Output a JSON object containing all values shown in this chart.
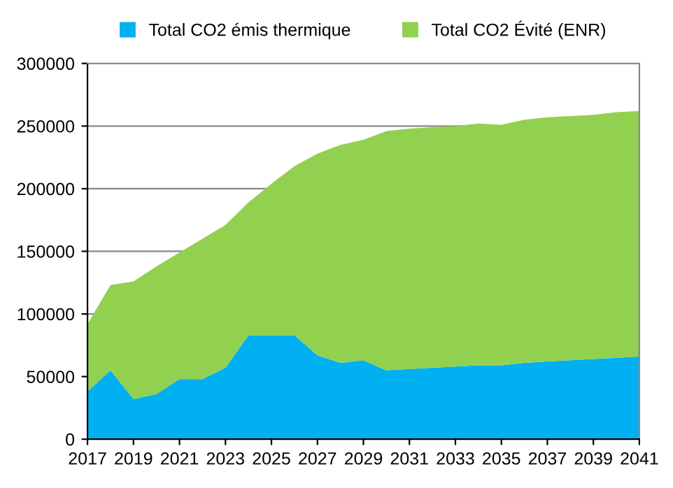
{
  "chart_data": {
    "type": "area",
    "stacked": true,
    "x": [
      2017,
      2018,
      2019,
      2020,
      2021,
      2022,
      2023,
      2024,
      2025,
      2026,
      2027,
      2028,
      2029,
      2030,
      2031,
      2032,
      2033,
      2034,
      2035,
      2036,
      2037,
      2038,
      2039,
      2040,
      2041
    ],
    "series": [
      {
        "name": "Total CO2 émis thermique",
        "color": "#00b0f0",
        "values": [
          38000,
          55000,
          32000,
          36000,
          48000,
          48000,
          57000,
          83000,
          83000,
          83000,
          67000,
          61000,
          63000,
          55000,
          56000,
          57000,
          58000,
          59000,
          59000,
          61000,
          62000,
          63000,
          64000,
          65000,
          66000
        ]
      },
      {
        "name": "Total CO2 Évité (ENR)",
        "color": "#92d050",
        "values": [
          54000,
          68000,
          94000,
          102000,
          101000,
          112000,
          114000,
          106000,
          121000,
          135000,
          161000,
          174000,
          176000,
          191000,
          192000,
          192000,
          192000,
          193000,
          192000,
          194000,
          195000,
          195000,
          195000,
          196000,
          196000
        ]
      }
    ],
    "xlim": [
      2017,
      2041
    ],
    "xticks": [
      2017,
      2019,
      2021,
      2023,
      2025,
      2027,
      2029,
      2031,
      2033,
      2035,
      2037,
      2039,
      2041
    ],
    "ylim": [
      0,
      300000
    ],
    "yticks": [
      0,
      50000,
      100000,
      150000,
      200000,
      250000,
      300000
    ],
    "grid": "y",
    "legend": "top"
  }
}
